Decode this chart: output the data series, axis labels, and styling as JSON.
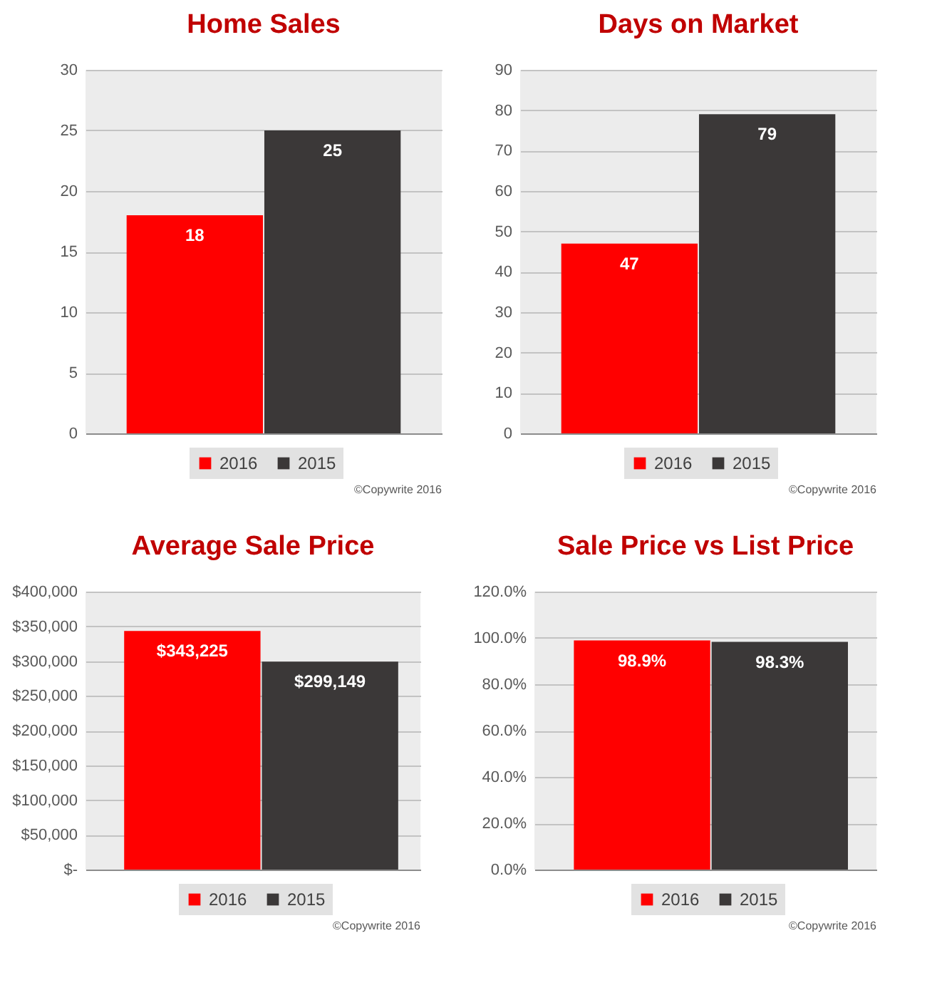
{
  "chart_data": [
    {
      "type": "bar",
      "title": "Home Sales",
      "categories": [
        null
      ],
      "series": [
        {
          "name": "2016",
          "color": "#ff0000",
          "values": [
            18
          ]
        },
        {
          "name": "2015",
          "color": "#3b3838",
          "values": [
            25
          ]
        }
      ],
      "ylim": [
        0,
        30
      ],
      "yticks": [
        0,
        5,
        10,
        15,
        20,
        25,
        30
      ],
      "grid": "y",
      "legend": "bottom",
      "data_labels": true,
      "tick_labels": "y",
      "annotations": [
        "©Copywrite 2016"
      ]
    },
    {
      "type": "bar",
      "title": "Days on Market",
      "categories": [
        null
      ],
      "series": [
        {
          "name": "2016",
          "color": "#ff0000",
          "values": [
            47
          ]
        },
        {
          "name": "2015",
          "color": "#3b3838",
          "values": [
            79
          ]
        }
      ],
      "ylim": [
        0,
        90
      ],
      "yticks": [
        0,
        10,
        20,
        30,
        40,
        50,
        60,
        70,
        80,
        90
      ],
      "grid": "y",
      "legend": "bottom",
      "data_labels": true,
      "tick_labels": "y",
      "annotations": [
        "©Copywrite 2016"
      ]
    },
    {
      "type": "bar",
      "title": "Average Sale Price",
      "categories": [
        null
      ],
      "series": [
        {
          "name": "2016",
          "color": "#ff0000",
          "values": [
            343225
          ],
          "value_labels": [
            "$343,225"
          ]
        },
        {
          "name": "2015",
          "color": "#3b3838",
          "values": [
            299149
          ],
          "value_labels": [
            "$299,149"
          ]
        }
      ],
      "ylim": [
        0,
        400000
      ],
      "yticks": [
        {
          "value": 0,
          "label": "$-"
        },
        {
          "value": 50000,
          "label": "$50,000"
        },
        {
          "value": 100000,
          "label": "$100,000"
        },
        {
          "value": 150000,
          "label": "$150,000"
        },
        {
          "value": 200000,
          "label": "$200,000"
        },
        {
          "value": 250000,
          "label": "$250,000"
        },
        {
          "value": 300000,
          "label": "$300,000"
        },
        {
          "value": 350000,
          "label": "$350,000"
        },
        {
          "value": 400000,
          "label": "$400,000"
        }
      ],
      "grid": "y",
      "legend": "bottom",
      "tick_labels": "y",
      "annotations": [
        "©Copywrite 2016"
      ]
    },
    {
      "type": "bar",
      "title": "Sale Price vs List Price",
      "categories": [
        null
      ],
      "series": [
        {
          "name": "2016",
          "color": "#ff0000",
          "values": [
            98.9
          ],
          "value_labels": [
            "98.9%"
          ]
        },
        {
          "name": "2015",
          "color": "#3b3838",
          "values": [
            98.3
          ],
          "value_labels": [
            "98.3%"
          ]
        }
      ],
      "ylim": [
        0,
        120
      ],
      "yticks": [
        {
          "value": 0,
          "label": "0.0%"
        },
        {
          "value": 20,
          "label": "20.0%"
        },
        {
          "value": 40,
          "label": "40.0%"
        },
        {
          "value": 60,
          "label": "60.0%"
        },
        {
          "value": 80,
          "label": "80.0%"
        },
        {
          "value": 100,
          "label": "100.0%"
        },
        {
          "value": 120,
          "label": "120.0%"
        }
      ],
      "grid": "y",
      "legend": "bottom",
      "tick_labels": "y",
      "annotations": [
        "©Copywrite 2016"
      ]
    }
  ]
}
